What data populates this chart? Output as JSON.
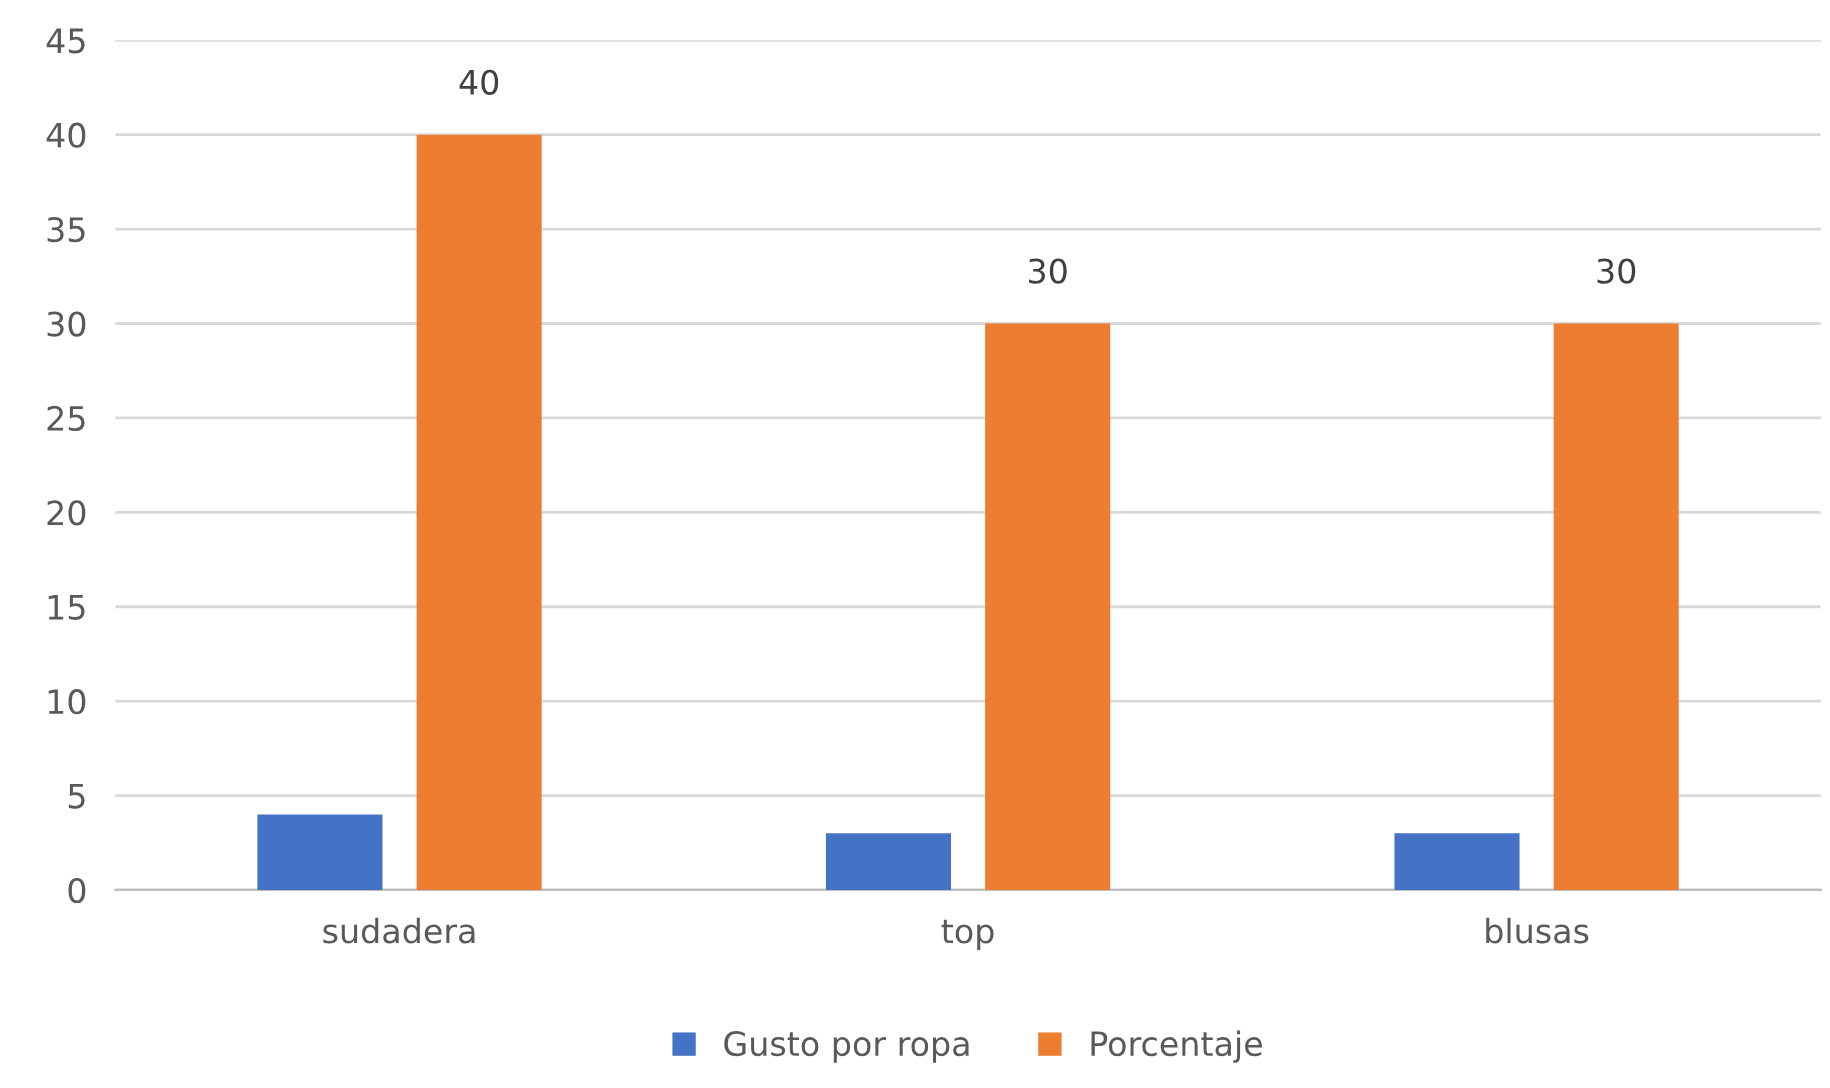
{
  "chart_data": {
    "type": "bar",
    "categories": [
      "sudadera",
      "top",
      "blusas"
    ],
    "series": [
      {
        "name": "Gusto por ropa",
        "color": "#4472c4",
        "values": [
          4,
          3,
          3
        ]
      },
      {
        "name": "Porcentaje",
        "color": "#ed7d31",
        "values": [
          40,
          30,
          30
        ],
        "value_labels": [
          "40",
          "30",
          "30"
        ]
      }
    ],
    "ylim": [
      0,
      45
    ],
    "yticks": [
      0,
      5,
      10,
      15,
      20,
      25,
      30,
      35,
      40,
      45
    ],
    "grid": "y",
    "legend": "bottom"
  }
}
